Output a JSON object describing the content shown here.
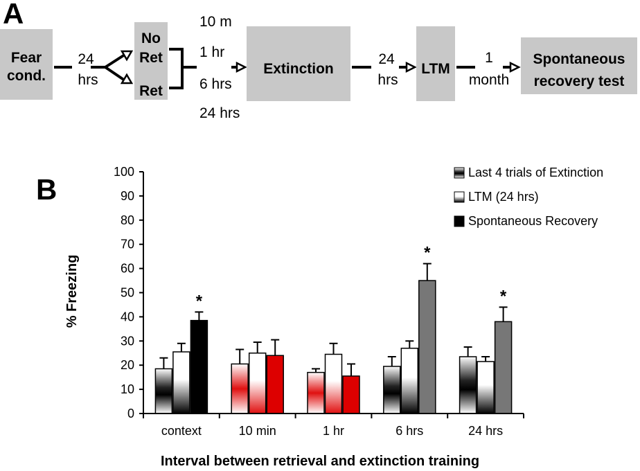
{
  "panel_a": {
    "label": "A",
    "fear_cond": [
      "Fear",
      "cond."
    ],
    "delay1": [
      "24",
      "hrs"
    ],
    "no_ret": [
      "No",
      "Ret"
    ],
    "ret": "Ret",
    "intervals": [
      "10 m",
      "1 hr",
      "6 hrs",
      "24 hrs"
    ],
    "extinction": "Extinction",
    "delay2": [
      "24",
      "hrs"
    ],
    "ltm": "LTM",
    "delay3": [
      "1",
      "month"
    ],
    "spontaneous": [
      "Spontaneous",
      "recovery test"
    ],
    "box_color": "#c8c8c8"
  },
  "panel_b": {
    "label": "B"
  },
  "chart_data": {
    "type": "bar",
    "title": "",
    "xlabel": "Interval between retrieval and extinction training",
    "ylabel": "% Freezing",
    "ylim": [
      0,
      100
    ],
    "yticks": [
      0,
      10,
      20,
      30,
      40,
      50,
      60,
      70,
      80,
      90,
      100
    ],
    "categories": [
      "context",
      "10 min",
      "1 hr",
      "6 hrs",
      "24 hrs"
    ],
    "series": [
      {
        "name": "Last 4 trials of Extinction",
        "values": [
          18.5,
          20.5,
          17,
          19.5,
          23.5
        ],
        "errors": [
          4.5,
          6,
          1.5,
          4,
          4
        ]
      },
      {
        "name": "LTM (24 hrs)",
        "values": [
          25.5,
          25,
          24.5,
          27,
          21.5
        ],
        "errors": [
          3.5,
          4.5,
          4.5,
          3,
          2
        ]
      },
      {
        "name": "Spontaneous Recovery",
        "values": [
          38.5,
          24,
          15.5,
          55,
          38
        ],
        "errors": [
          3.5,
          6.5,
          5,
          7,
          6
        ]
      }
    ],
    "group_colors": [
      "#000000",
      "#dd0000",
      "#dd0000",
      "#777777",
      "#777777"
    ],
    "significance": [
      {
        "category": "context",
        "series": "Spontaneous Recovery",
        "mark": "*"
      },
      {
        "category": "6 hrs",
        "series": "Spontaneous Recovery",
        "mark": "*"
      },
      {
        "category": "24 hrs",
        "series": "Spontaneous Recovery",
        "mark": "*"
      }
    ],
    "legend_position": "top-right",
    "grid": false
  }
}
